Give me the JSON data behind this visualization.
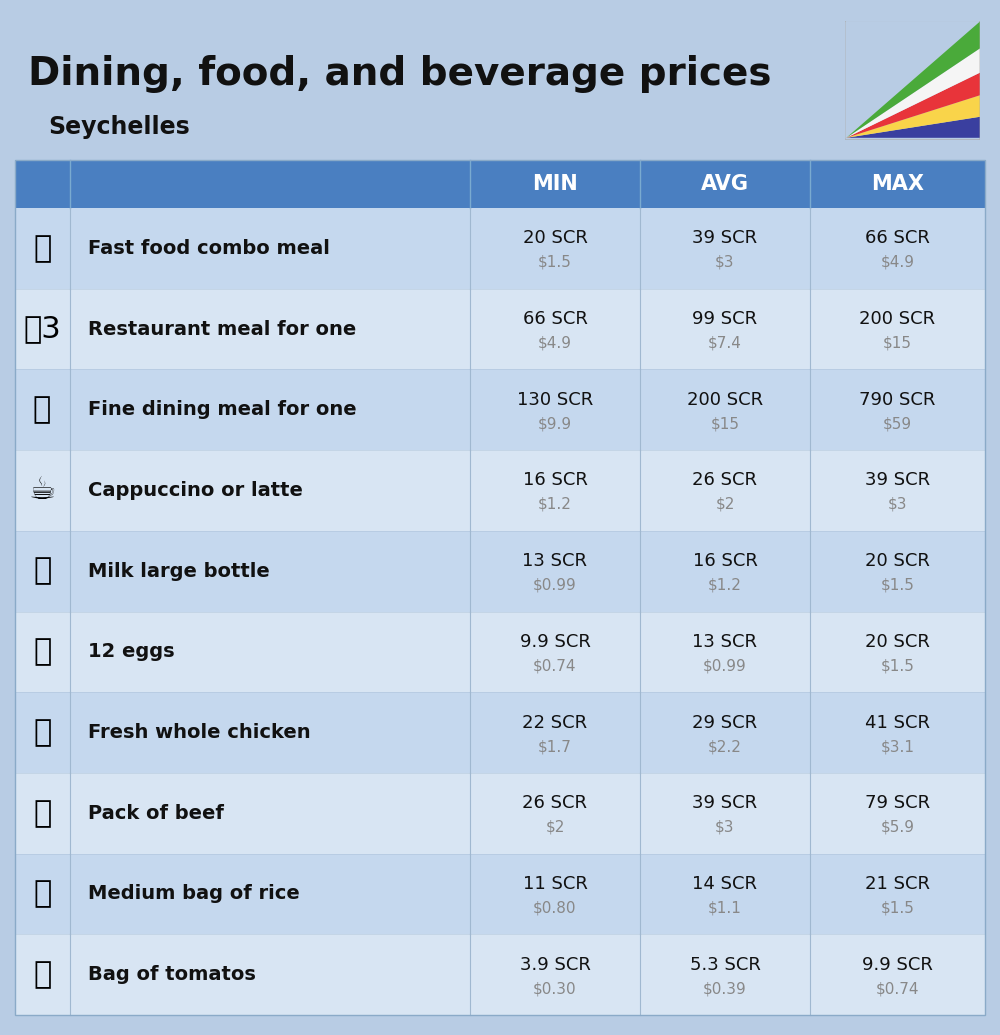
{
  "title": "Dining, food, and beverage prices",
  "subtitle": "Seychelles",
  "bg_color": "#b8cce4",
  "header_bg": "#4a7fc1",
  "header_text_color": "#ffffff",
  "row_bg_even": "#c5d8ee",
  "row_bg_odd": "#d8e5f3",
  "label_color": "#111111",
  "value_color": "#111111",
  "subvalue_color": "#888888",
  "col_headers": [
    "MIN",
    "AVG",
    "MAX"
  ],
  "flag_colors": [
    "#3a3f9f",
    "#f9d44a",
    "#e8343a",
    "#f5f5f5",
    "#4aaa3a"
  ],
  "rows": [
    {
      "label": "Fast food combo meal",
      "min_scr": "20 SCR",
      "min_usd": "$1.5",
      "avg_scr": "39 SCR",
      "avg_usd": "$3",
      "max_scr": "66 SCR",
      "max_usd": "$4.9"
    },
    {
      "label": "Restaurant meal for one",
      "min_scr": "66 SCR",
      "min_usd": "$4.9",
      "avg_scr": "99 SCR",
      "avg_usd": "$7.4",
      "max_scr": "200 SCR",
      "max_usd": "$15"
    },
    {
      "label": "Fine dining meal for one",
      "min_scr": "130 SCR",
      "min_usd": "$9.9",
      "avg_scr": "200 SCR",
      "avg_usd": "$15",
      "max_scr": "790 SCR",
      "max_usd": "$59"
    },
    {
      "label": "Cappuccino or latte",
      "min_scr": "16 SCR",
      "min_usd": "$1.2",
      "avg_scr": "26 SCR",
      "avg_usd": "$2",
      "max_scr": "39 SCR",
      "max_usd": "$3"
    },
    {
      "label": "Milk large bottle",
      "min_scr": "13 SCR",
      "min_usd": "$0.99",
      "avg_scr": "16 SCR",
      "avg_usd": "$1.2",
      "max_scr": "20 SCR",
      "max_usd": "$1.5"
    },
    {
      "label": "12 eggs",
      "min_scr": "9.9 SCR",
      "min_usd": "$0.74",
      "avg_scr": "13 SCR",
      "avg_usd": "$0.99",
      "max_scr": "20 SCR",
      "max_usd": "$1.5"
    },
    {
      "label": "Fresh whole chicken",
      "min_scr": "22 SCR",
      "min_usd": "$1.7",
      "avg_scr": "29 SCR",
      "avg_usd": "$2.2",
      "max_scr": "41 SCR",
      "max_usd": "$3.1"
    },
    {
      "label": "Pack of beef",
      "min_scr": "26 SCR",
      "min_usd": "$2",
      "avg_scr": "39 SCR",
      "avg_usd": "$3",
      "max_scr": "79 SCR",
      "max_usd": "$5.9"
    },
    {
      "label": "Medium bag of rice",
      "min_scr": "11 SCR",
      "min_usd": "$0.80",
      "avg_scr": "14 SCR",
      "avg_usd": "$1.1",
      "max_scr": "21 SCR",
      "max_usd": "$1.5"
    },
    {
      "label": "Bag of tomatos",
      "min_scr": "3.9 SCR",
      "min_usd": "$0.30",
      "avg_scr": "5.3 SCR",
      "avg_usd": "$0.39",
      "max_scr": "9.9 SCR",
      "max_usd": "$0.74"
    }
  ],
  "icon_emojis": [
    "🍔",
    "🌷3",
    "🍽️",
    "☕",
    "🥛",
    "🥚",
    "🍗",
    "🥩",
    "🍚",
    "🍅"
  ],
  "figsize": [
    10.0,
    10.35
  ],
  "dpi": 100
}
